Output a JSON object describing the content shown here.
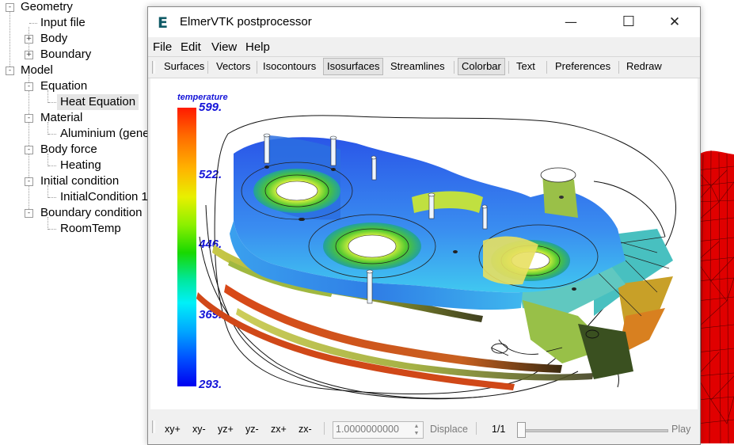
{
  "tree": {
    "items": [
      {
        "label": "Geometry",
        "level": 0,
        "toggle": "-"
      },
      {
        "label": "Input file",
        "level": 1,
        "toggle": ""
      },
      {
        "label": "Body",
        "level": 1,
        "toggle": "+"
      },
      {
        "label": "Boundary",
        "level": 1,
        "toggle": "+"
      },
      {
        "label": "Model",
        "level": 0,
        "toggle": "-"
      },
      {
        "label": "Equation",
        "level": 1,
        "toggle": "-"
      },
      {
        "label": "Heat Equation",
        "level": 2,
        "toggle": "",
        "selected": true
      },
      {
        "label": "Material",
        "level": 1,
        "toggle": "-"
      },
      {
        "label": "Aluminium (gene",
        "level": 2,
        "toggle": ""
      },
      {
        "label": "Body force",
        "level": 1,
        "toggle": "-"
      },
      {
        "label": "Heating",
        "level": 2,
        "toggle": ""
      },
      {
        "label": "Initial condition",
        "level": 1,
        "toggle": "-"
      },
      {
        "label": "InitialCondition 1",
        "level": 2,
        "toggle": ""
      },
      {
        "label": "Boundary condition",
        "level": 1,
        "toggle": "-"
      },
      {
        "label": "RoomTemp",
        "level": 2,
        "toggle": ""
      }
    ]
  },
  "window": {
    "icon_letter": "E",
    "title": "ElmerVTK postprocessor",
    "minimize": "—",
    "maximize": "☐",
    "close": "✕"
  },
  "menu": [
    "File",
    "Edit",
    "View",
    "Help"
  ],
  "toolbar": {
    "buttons": [
      "Surfaces",
      "Vectors",
      "Isocontours",
      "Isosurfaces",
      "Streamlines",
      "Colorbar",
      "Text",
      "Preferences",
      "Redraw"
    ],
    "pressed": [
      "Isosurfaces",
      "Colorbar"
    ]
  },
  "colorbar": {
    "title": "temperature",
    "labels": [
      "599.",
      "522.",
      "446.",
      "369.",
      "293."
    ],
    "colors": {
      "high": "#ff1a00",
      "mid": "#18d800",
      "low": "#0000f0",
      "label_color": "#1414d8"
    }
  },
  "bottombar": {
    "view_buttons": [
      "xy+",
      "xy-",
      "yz+",
      "yz-",
      "zx+",
      "zx-"
    ],
    "displace_value": "1.0000000000",
    "displace_label": "Displace",
    "frame": "1/1",
    "play_label": "Play"
  }
}
